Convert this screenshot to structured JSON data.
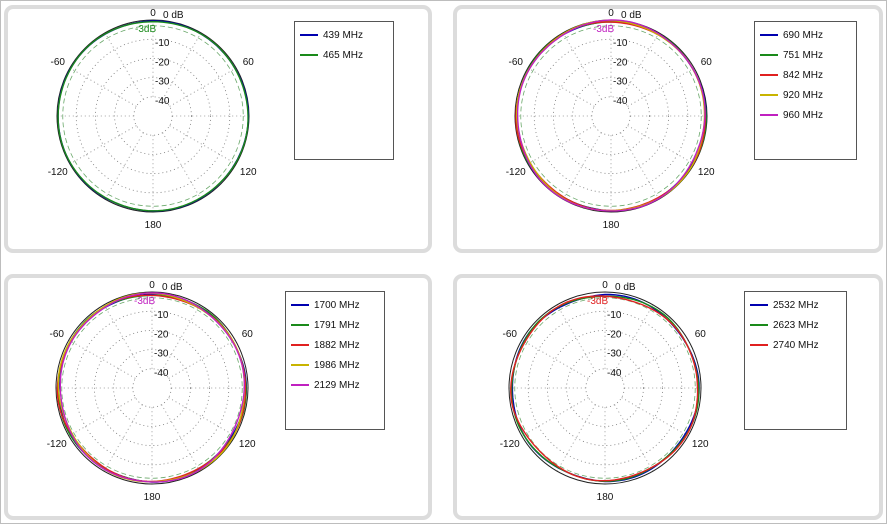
{
  "chart_data": [
    {
      "type": "polar",
      "radial_unit": "dB",
      "rings": [
        0,
        -10,
        -20,
        -30,
        -40
      ],
      "ring_labels": [
        "0 dB",
        "-10",
        "-20",
        "-30",
        "-40"
      ],
      "angle_labels": [
        {
          "angle": 0,
          "text": "0"
        },
        {
          "angle": 60,
          "text": "-60"
        },
        {
          "angle": 120,
          "text": "-120"
        },
        {
          "angle": 180,
          "text": "180"
        },
        {
          "angle": 240,
          "text": "120"
        },
        {
          "angle": 300,
          "text": "60"
        }
      ],
      "reference_label": "-3dB",
      "reference_db": -3,
      "series": [
        {
          "name": "439 MHz",
          "color": "#0000b0",
          "shape": [
            0.6,
            0.3,
            0.2,
            0.1
          ]
        },
        {
          "name": "465 MHz",
          "color": "#1a8a1a",
          "shape": [
            0.7,
            0.35,
            0.25,
            0.15
          ]
        }
      ]
    },
    {
      "type": "polar",
      "radial_unit": "dB",
      "rings": [
        0,
        -10,
        -20,
        -30,
        -40
      ],
      "ring_labels": [
        "0 dB",
        "-10",
        "-20",
        "-30",
        "-40"
      ],
      "angle_labels": [
        {
          "angle": 0,
          "text": "0"
        },
        {
          "angle": 60,
          "text": "-60"
        },
        {
          "angle": 120,
          "text": "-120"
        },
        {
          "angle": 180,
          "text": "180"
        },
        {
          "angle": 240,
          "text": "120"
        },
        {
          "angle": 300,
          "text": "60"
        }
      ],
      "reference_label": "-3dB",
      "reference_db": -3,
      "series": [
        {
          "name": "690 MHz",
          "color": "#0000b0",
          "shape": [
            0.8,
            0.4,
            0.3,
            0.2
          ]
        },
        {
          "name": "751 MHz",
          "color": "#1a8a1a",
          "shape": [
            0.9,
            0.3,
            0.35,
            0.2
          ]
        },
        {
          "name": "842 MHz",
          "color": "#e02020",
          "shape": [
            1.0,
            0.45,
            0.3,
            0.25
          ]
        },
        {
          "name": "920 MHz",
          "color": "#c8b400",
          "shape": [
            0.7,
            0.5,
            0.4,
            0.3
          ]
        },
        {
          "name": "960 MHz",
          "color": "#c020c0",
          "shape": [
            0.9,
            0.4,
            0.45,
            0.3
          ]
        }
      ]
    },
    {
      "type": "polar",
      "radial_unit": "dB",
      "rings": [
        0,
        -10,
        -20,
        -30,
        -40
      ],
      "ring_labels": [
        "0 dB",
        "-10",
        "-20",
        "-30",
        "-40"
      ],
      "angle_labels": [
        {
          "angle": 0,
          "text": "0"
        },
        {
          "angle": 60,
          "text": "-60"
        },
        {
          "angle": 120,
          "text": "-120"
        },
        {
          "angle": 180,
          "text": "180"
        },
        {
          "angle": 240,
          "text": "120"
        },
        {
          "angle": 300,
          "text": "60"
        }
      ],
      "reference_label": "-3dB",
      "reference_db": -3,
      "series": [
        {
          "name": "1700 MHz",
          "color": "#0000b0",
          "shape": [
            1.6,
            0.6,
            0.4,
            0.3
          ]
        },
        {
          "name": "1791 MHz",
          "color": "#1a8a1a",
          "shape": [
            1.8,
            0.5,
            0.5,
            0.3
          ]
        },
        {
          "name": "1882 MHz",
          "color": "#e02020",
          "shape": [
            1.7,
            0.7,
            0.4,
            0.35
          ]
        },
        {
          "name": "1986 MHz",
          "color": "#c8b400",
          "shape": [
            1.5,
            0.6,
            0.5,
            0.4
          ]
        },
        {
          "name": "2129 MHz",
          "color": "#c020c0",
          "shape": [
            1.9,
            0.7,
            0.45,
            0.35
          ]
        }
      ]
    },
    {
      "type": "polar",
      "radial_unit": "dB",
      "rings": [
        0,
        -10,
        -20,
        -30,
        -40
      ],
      "ring_labels": [
        "0 dB",
        "-10",
        "-20",
        "-30",
        "-40"
      ],
      "angle_labels": [
        {
          "angle": 0,
          "text": "0"
        },
        {
          "angle": 60,
          "text": "-60"
        },
        {
          "angle": 120,
          "text": "-120"
        },
        {
          "angle": 180,
          "text": "180"
        },
        {
          "angle": 240,
          "text": "120"
        },
        {
          "angle": 300,
          "text": "60"
        }
      ],
      "reference_label": "-3dB",
      "reference_db": -3,
      "series": [
        {
          "name": "2532 MHz",
          "color": "#0000b0",
          "shape": [
            1.8,
            0.8,
            0.5,
            0.4
          ]
        },
        {
          "name": "2623 MHz",
          "color": "#1a8a1a",
          "shape": [
            2.0,
            0.7,
            0.6,
            0.4
          ]
        },
        {
          "name": "2740 MHz",
          "color": "#e02020",
          "shape": [
            2.2,
            0.9,
            0.6,
            0.5
          ]
        }
      ]
    }
  ]
}
